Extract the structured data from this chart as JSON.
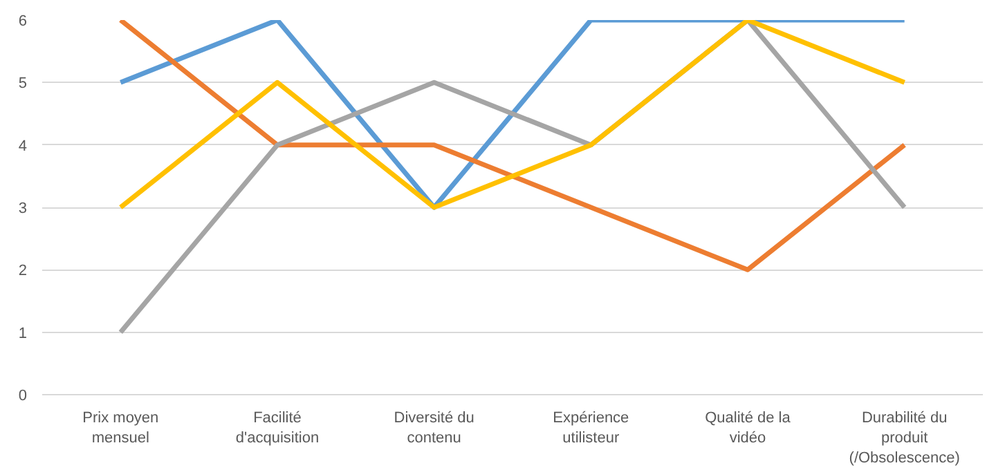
{
  "chart_data": {
    "type": "line",
    "categories": [
      "Prix moyen\nmensuel",
      "Facilité\nd'acquisition",
      "Diversité du\ncontenu",
      "Expérience\nutilisteur",
      "Qualité de la\nvidéo",
      "Durabilité du\nproduit\n(/Obsolescence)"
    ],
    "series": [
      {
        "color": "#5b9bd5",
        "values": [
          5,
          6,
          3,
          6,
          6,
          6
        ]
      },
      {
        "color": "#ed7d31",
        "values": [
          6,
          4,
          4,
          3,
          2,
          4
        ]
      },
      {
        "color": "#a5a5a5",
        "values": [
          1,
          4,
          5,
          4,
          6,
          3
        ]
      },
      {
        "color": "#ffc000",
        "values": [
          3,
          5,
          3,
          4,
          6,
          5
        ]
      }
    ],
    "ylim": [
      0,
      6
    ],
    "yticks": [
      0,
      1,
      2,
      3,
      4,
      5,
      6
    ],
    "grid": "y",
    "marker": "none",
    "line_style": "solid"
  }
}
